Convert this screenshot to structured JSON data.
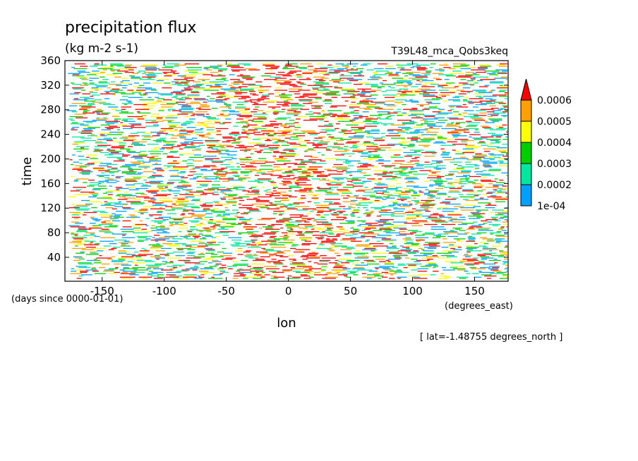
{
  "chart_data": {
    "type": "heatmap",
    "title": "precipitation flux",
    "units": "(kg m-2 s-1)",
    "experiment": "T39L48_mca_Qobs3keq",
    "xlabel": "lon",
    "ylabel": "time",
    "x_units": "(degrees_east)",
    "y_units": "(days since 0000-01-01)",
    "section_note": "[ lat=-1.48755 degrees_north ]",
    "xlim": [
      -180,
      177
    ],
    "ylim": [
      1,
      360
    ],
    "x_ticks": [
      -150,
      -100,
      -50,
      0,
      50,
      100,
      150
    ],
    "x_tick_labels": [
      "-150",
      "-100",
      "-50",
      "0",
      "50",
      "100",
      "150"
    ],
    "y_ticks": [
      40,
      80,
      120,
      160,
      200,
      240,
      280,
      320,
      360
    ],
    "y_tick_labels": [
      "40",
      "80",
      "120",
      "160",
      "200",
      "240",
      "280",
      "320",
      "360"
    ],
    "colorbar": {
      "levels": [
        0.0001,
        0.0002,
        0.0003,
        0.0004,
        0.0005,
        0.0006
      ],
      "level_labels": [
        "1e-04",
        "0.0002",
        "0.0003",
        "0.0004",
        "0.0005",
        "0.0006"
      ],
      "colors": [
        "#00a0ff",
        "#00e8a0",
        "#00d000",
        "#ffff00",
        "#ffa000",
        "#ff0000"
      ]
    }
  }
}
